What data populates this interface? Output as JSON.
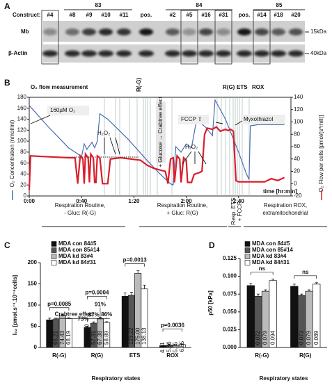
{
  "panel_a": {
    "label": "A",
    "construct_label": "Construct:",
    "groups": [
      "83",
      "84",
      "85"
    ],
    "lanes": [
      "#4",
      "#8",
      "#9",
      "#10",
      "#11",
      "pos.",
      "#2",
      "#5",
      "#16",
      "#31",
      "pos.",
      "#14",
      "#18",
      "#20"
    ],
    "rows": [
      "Mb",
      "β-Actin"
    ],
    "markers": [
      "15kDa",
      "40kDa"
    ]
  },
  "chart_data": [
    {
      "panel": "B",
      "type": "line",
      "title": "O₂ flow measurement",
      "ylabel": "O₂ Concentration (nmol/ml)",
      "y2label": "O₂ Flow per cells [pmol/(s*mill)]",
      "xlabel": "time [hr:min]",
      "xlim": [
        0,
        200
      ],
      "xticks": [
        {
          "value": 0,
          "label": "0:00"
        },
        {
          "value": 40,
          "label": "0:40"
        },
        {
          "value": 80,
          "label": "1:20"
        },
        {
          "value": 120,
          "label": "2:00"
        },
        {
          "value": 160,
          "label": "2:40"
        }
      ],
      "ylim": [
        0,
        180
      ],
      "yticks": [
        0,
        20,
        40,
        60,
        80,
        100,
        120,
        140,
        160,
        180
      ],
      "y2lim": [
        -20,
        140
      ],
      "y2ticks": [
        -20,
        0,
        20,
        40,
        60,
        80,
        100,
        120,
        140
      ],
      "series": [
        {
          "color": "#4a6cb0",
          "x": [
            0,
            15,
            30,
            40,
            42,
            44,
            48,
            50,
            52,
            54,
            60,
            75,
            90,
            100,
            108,
            110,
            112,
            116,
            120,
            124,
            128,
            135,
            140,
            142,
            150,
            160,
            166,
            168,
            169,
            175,
            195
          ],
          "values": [
            165,
            125,
            88,
            72,
            95,
            85,
            98,
            88,
            100,
            150,
            140,
            105,
            65,
            40,
            22,
            20,
            90,
            80,
            95,
            88,
            140,
            125,
            110,
            175,
            140,
            80,
            40,
            30,
            128,
            130,
            130
          ]
        },
        {
          "color": "#d81e2c",
          "axis": "y2",
          "x": [
            0,
            1,
            10,
            30,
            35,
            37,
            39,
            41,
            42,
            43,
            45,
            46,
            47,
            49,
            50,
            51,
            52,
            54,
            56,
            60,
            62,
            70,
            85,
            90,
            95,
            100,
            104,
            106,
            108,
            110,
            111,
            113,
            115,
            116,
            118,
            120,
            121,
            124,
            126,
            130,
            132,
            134,
            136,
            140,
            143,
            146,
            150,
            152,
            154,
            156,
            158,
            160,
            180,
            185,
            190,
            195
          ],
          "values": [
            -10,
            45,
            44,
            42,
            42,
            0,
            45,
            40,
            0,
            48,
            42,
            2,
            48,
            42,
            2,
            2,
            45,
            42,
            0,
            0,
            40,
            42,
            38,
            30,
            25,
            22,
            20,
            0,
            40,
            42,
            2,
            45,
            40,
            2,
            42,
            38,
            2,
            2,
            15,
            18,
            20,
            80,
            90,
            88,
            92,
            85,
            88,
            86,
            88,
            85,
            5,
            3,
            3,
            8,
            5,
            10
          ]
        }
      ],
      "states": [
        "R(-G)",
        "R(G)",
        "ETS",
        "ROX"
      ],
      "annotations": [
        "160µM O₂",
        "H₂O₂",
        "+ Glucose → Crabtree effect",
        "H₂O₂",
        "FCCP ⇧",
        "Myxothiazol"
      ],
      "phases": [
        [
          "Respiration Routine,",
          "- Gluc: R(-G)"
        ],
        [
          "Respiration Routine,",
          "+ Gluc: R(G)"
        ],
        [
          "Resp. ETS",
          "+ FCCP"
        ],
        [
          "Respiration ROX,",
          "extramitochondrial"
        ]
      ]
    },
    {
      "panel": "C",
      "type": "bar",
      "ylabel": "I₀₂ [pmol.s⁻¹.10⁻⁶cells]",
      "xlabel": "Respiratory states",
      "categories": [
        "R(-G)",
        "R(G)",
        "ETS",
        "ROX"
      ],
      "ylim": [
        0,
        200
      ],
      "yticks": [
        0,
        50,
        100,
        150,
        200
      ],
      "series": [
        {
          "name": "MDA con 84#5",
          "color": "#111111",
          "values": [
            65.13,
            47.3,
            120.69,
            4.31
          ],
          "value_labels": [
            "65.13",
            "47.30",
            "120.69",
            "4.31"
          ],
          "errors": [
            4,
            3,
            8,
            1
          ]
        },
        {
          "name": "MDA con 85#14",
          "color": "#555555",
          "values": [
            66.21,
            57.31,
            123.22,
            5.86
          ],
          "value_labels": [
            "66.21",
            "57.31",
            "123.22",
            "5.86"
          ],
          "errors": [
            3,
            3,
            7,
            1
          ]
        },
        {
          "name": "MDA kd 83#4",
          "color": "#bbbbbb",
          "values": [
            74.43,
            67.38,
            175.0,
            5.35
          ],
          "value_labels": [
            "74.43",
            "67.38",
            "175.00",
            "5.35"
          ],
          "errors": [
            3,
            4,
            6,
            1
          ]
        },
        {
          "name": "MDA kd 84#31",
          "color": "#ffffff",
          "values": [
            68.19,
            58.89,
            138.13,
            6.85
          ],
          "value_labels": [
            "68.19",
            "58.89",
            "138.13",
            "6.85"
          ],
          "errors": [
            2,
            2,
            9,
            1
          ]
        }
      ],
      "pvalues": [
        "p=0.0085",
        "p=0.0004",
        "p=0.0013",
        "p=0.0036"
      ],
      "note": "Crabtree effect",
      "percents": [
        "73%",
        "87%",
        "91%",
        "86%"
      ]
    },
    {
      "panel": "D",
      "type": "bar",
      "ylabel": "p50 [kPa]",
      "xlabel": "Respiratory states",
      "categories": [
        "R(-G)",
        "R(G)"
      ],
      "ylim": [
        0,
        0.125
      ],
      "yticks": [
        {
          "value": 0,
          "label": "0.000"
        },
        {
          "value": 0.025,
          "label": "0.025"
        },
        {
          "value": 0.05,
          "label": "0.050"
        },
        {
          "value": 0.075,
          "label": "0.075"
        },
        {
          "value": 0.1,
          "label": "0.100"
        },
        {
          "value": 0.125,
          "label": "0.125"
        }
      ],
      "series": [
        {
          "name": "MDA con 84#5",
          "color": "#111111",
          "values": [
            0.087,
            0.086
          ],
          "errors": [
            0.003,
            0.003
          ]
        },
        {
          "name": "MDA con 85#14",
          "color": "#555555",
          "values": [
            0.072,
            0.073
          ],
          "errors": [
            0.003,
            0.002
          ]
        },
        {
          "name": "MDA kd 83#4",
          "color": "#bbbbbb",
          "values": [
            0.079,
            0.079
          ],
          "errors": [
            0.002,
            0.002
          ]
        },
        {
          "name": "MDA kd 84#31",
          "color": "#ffffff",
          "values": [
            0.094,
            0.089
          ],
          "errors": [
            0.002,
            0.002
          ]
        }
      ],
      "pvalues": [
        "ns",
        "ns"
      ]
    }
  ]
}
